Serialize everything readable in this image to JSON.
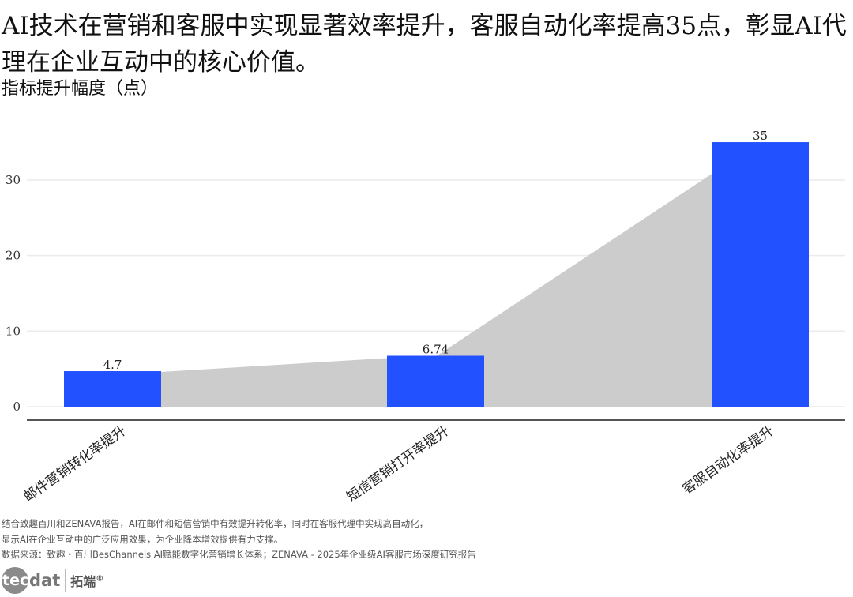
{
  "header": {
    "title": "AI技术在营销和客服中实现显著效率提升，客服自动化率提高35点，彰显AI代理在企业互动中的核心价值。",
    "subtitle": "指标提升幅度（点）"
  },
  "colors": {
    "bar": "#2251ff",
    "connector": "#cccccc",
    "grid": "#ebebeb",
    "axis": "#555555"
  },
  "chart_data": {
    "type": "bar",
    "title": "AI技术在营销和客服中实现显著效率提升，客服自动化率提高35点，彰显AI代理在企业互动中的核心价值。",
    "subtitle": "指标提升幅度（点）",
    "xlabel": "",
    "ylabel": "指标提升幅度（点）",
    "categories": [
      "邮件营销转化率提升",
      "短信营销打开率提升",
      "客服自动化率提升"
    ],
    "values": [
      4.7,
      6.74,
      35
    ],
    "value_labels": [
      "4.7",
      "6.74",
      "35"
    ],
    "yticks": [
      0,
      10,
      20,
      30
    ],
    "ytick_labels": [
      "0",
      "10",
      "20",
      "30"
    ],
    "ylim": [
      0,
      36.5
    ],
    "grid": "horizontal",
    "legend": "none",
    "annotations": [
      "grey connector bands between bars"
    ]
  },
  "footer": {
    "note_line1": "结合致趣百川和ZENAVA报告，AI在邮件和短信营销中有效提升转化率，同时在客服代理中实现高自动化，",
    "note_line2": "显示AI在企业互动中的广泛应用效果，为企业降本增效提供有力支撑。",
    "source": "数据来源：致趣・百川BesChannels AI赋能数字化营销增长体系；ZENAVA - 2025年企业级AI客服市场深度研究报告"
  },
  "logo": {
    "circle_text": "tec",
    "text": "dat",
    "cn": "拓端",
    "reg": "®"
  }
}
